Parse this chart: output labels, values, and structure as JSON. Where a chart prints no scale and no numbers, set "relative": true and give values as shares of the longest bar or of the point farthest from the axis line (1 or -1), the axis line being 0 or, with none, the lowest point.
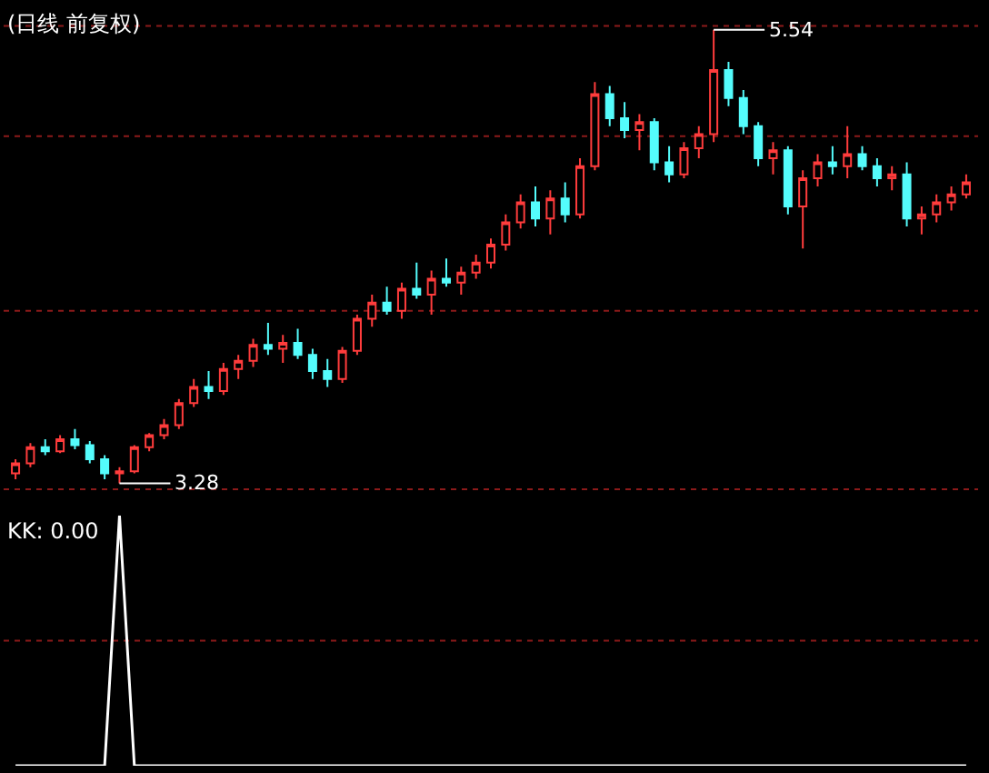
{
  "chart_data": [
    {
      "type": "candlestick",
      "title": "(日线 前复权)",
      "categories": [
        null,
        null,
        null,
        null,
        null,
        null,
        null,
        null,
        null,
        null,
        null,
        null,
        null,
        null,
        null,
        null,
        null,
        null,
        null,
        null,
        null,
        null,
        null,
        null,
        null,
        null,
        null,
        null,
        null,
        null,
        null,
        null,
        null,
        null,
        null,
        null,
        null,
        null,
        null,
        null,
        null,
        null,
        null,
        null,
        null,
        null,
        null,
        null,
        null,
        null,
        null,
        null,
        null,
        null,
        null,
        null,
        null,
        null,
        null,
        null,
        null,
        null,
        null,
        null,
        null
      ],
      "ohlc": [
        [
          3.33,
          3.4,
          3.3,
          3.38
        ],
        [
          3.38,
          3.48,
          3.36,
          3.46
        ],
        [
          3.46,
          3.5,
          3.42,
          3.44
        ],
        [
          3.44,
          3.52,
          3.43,
          3.5
        ],
        [
          3.5,
          3.55,
          3.45,
          3.47
        ],
        [
          3.47,
          3.49,
          3.38,
          3.4
        ],
        [
          3.4,
          3.42,
          3.3,
          3.33
        ],
        [
          3.33,
          3.36,
          3.28,
          3.34
        ],
        [
          3.34,
          3.47,
          3.33,
          3.46
        ],
        [
          3.46,
          3.53,
          3.44,
          3.52
        ],
        [
          3.52,
          3.6,
          3.5,
          3.57
        ],
        [
          3.57,
          3.7,
          3.55,
          3.68
        ],
        [
          3.68,
          3.8,
          3.66,
          3.76
        ],
        [
          3.76,
          3.84,
          3.7,
          3.74
        ],
        [
          3.74,
          3.88,
          3.72,
          3.85
        ],
        [
          3.85,
          3.92,
          3.8,
          3.89
        ],
        [
          3.89,
          4.0,
          3.86,
          3.97
        ],
        [
          3.97,
          4.08,
          3.92,
          3.95
        ],
        [
          3.95,
          4.02,
          3.88,
          3.98
        ],
        [
          3.98,
          4.05,
          3.9,
          3.92
        ],
        [
          3.92,
          3.95,
          3.8,
          3.84
        ],
        [
          3.84,
          3.9,
          3.76,
          3.8
        ],
        [
          3.8,
          3.96,
          3.78,
          3.94
        ],
        [
          3.94,
          4.12,
          3.92,
          4.1
        ],
        [
          4.1,
          4.22,
          4.06,
          4.18
        ],
        [
          4.18,
          4.26,
          4.12,
          4.14
        ],
        [
          4.14,
          4.28,
          4.1,
          4.25
        ],
        [
          4.25,
          4.38,
          4.2,
          4.22
        ],
        [
          4.22,
          4.34,
          4.12,
          4.3
        ],
        [
          4.3,
          4.4,
          4.26,
          4.28
        ],
        [
          4.28,
          4.36,
          4.22,
          4.33
        ],
        [
          4.33,
          4.42,
          4.3,
          4.38
        ],
        [
          4.38,
          4.5,
          4.35,
          4.47
        ],
        [
          4.47,
          4.62,
          4.44,
          4.58
        ],
        [
          4.58,
          4.72,
          4.55,
          4.68
        ],
        [
          4.68,
          4.76,
          4.56,
          4.6
        ],
        [
          4.6,
          4.74,
          4.52,
          4.7
        ],
        [
          4.7,
          4.78,
          4.58,
          4.62
        ],
        [
          4.62,
          4.9,
          4.6,
          4.86
        ],
        [
          4.86,
          5.28,
          4.84,
          5.22
        ],
        [
          5.22,
          5.26,
          5.06,
          5.1
        ],
        [
          5.1,
          5.18,
          5.0,
          5.04
        ],
        [
          5.04,
          5.12,
          4.94,
          5.08
        ],
        [
          5.08,
          5.1,
          4.84,
          4.88
        ],
        [
          4.88,
          4.96,
          4.78,
          4.82
        ],
        [
          4.82,
          4.98,
          4.8,
          4.95
        ],
        [
          4.95,
          5.06,
          4.9,
          5.02
        ],
        [
          5.02,
          5.54,
          4.98,
          5.34
        ],
        [
          5.34,
          5.38,
          5.16,
          5.2
        ],
        [
          5.2,
          5.24,
          5.02,
          5.06
        ],
        [
          5.06,
          5.08,
          4.86,
          4.9
        ],
        [
          4.9,
          4.98,
          4.82,
          4.94
        ],
        [
          4.94,
          4.96,
          4.62,
          4.66
        ],
        [
          4.66,
          4.84,
          4.45,
          4.8
        ],
        [
          4.8,
          4.92,
          4.76,
          4.88
        ],
        [
          4.88,
          4.96,
          4.82,
          4.86
        ],
        [
          4.86,
          5.06,
          4.8,
          4.92
        ],
        [
          4.92,
          4.96,
          4.84,
          4.86
        ],
        [
          4.86,
          4.9,
          4.76,
          4.8
        ],
        [
          4.8,
          4.86,
          4.74,
          4.82
        ],
        [
          4.82,
          4.88,
          4.56,
          4.6
        ],
        [
          4.6,
          4.66,
          4.52,
          4.62
        ],
        [
          4.62,
          4.72,
          4.58,
          4.68
        ],
        [
          4.68,
          4.76,
          4.64,
          4.72
        ],
        [
          4.72,
          4.82,
          4.7,
          4.78
        ]
      ],
      "colors": [
        "#ff3c3c",
        "#ff3c3c",
        "#54fcfc",
        "#ff3c3c",
        "#54fcfc",
        "#54fcfc",
        "#54fcfc",
        "#ff3c3c",
        "#ff3c3c",
        "#ff3c3c",
        "#ff3c3c",
        "#ff3c3c",
        "#ff3c3c",
        "#54fcfc",
        "#ff3c3c",
        "#ff3c3c",
        "#ff3c3c",
        "#54fcfc",
        "#ff3c3c",
        "#54fcfc",
        "#54fcfc",
        "#54fcfc",
        "#ff3c3c",
        "#ff3c3c",
        "#ff3c3c",
        "#54fcfc",
        "#ff3c3c",
        "#54fcfc",
        "#ff3c3c",
        "#54fcfc",
        "#ff3c3c",
        "#ff3c3c",
        "#ff3c3c",
        "#ff3c3c",
        "#ff3c3c",
        "#54fcfc",
        "#ff3c3c",
        "#54fcfc",
        "#ff3c3c",
        "#ff3c3c",
        "#54fcfc",
        "#54fcfc",
        "#ff3c3c",
        "#54fcfc",
        "#54fcfc",
        "#ff3c3c",
        "#ff3c3c",
        "#ff3c3c",
        "#54fcfc",
        "#54fcfc",
        "#54fcfc",
        "#ff3c3c",
        "#54fcfc",
        "#ff3c3c",
        "#ff3c3c",
        "#54fcfc",
        "#ff3c3c",
        "#54fcfc",
        "#54fcfc",
        "#ff3c3c",
        "#54fcfc",
        "#ff3c3c",
        "#ff3c3c",
        "#ff3c3c",
        "#ff3c3c"
      ],
      "annotations": [
        {
          "text": "3.28",
          "y": 3.28
        },
        {
          "text": "5.54",
          "y": 5.54
        }
      ],
      "ref_lines": [
        {
          "axis": "y",
          "value": 5.56,
          "color": "#8b1a1a",
          "line_style": "dotted"
        },
        {
          "axis": "y",
          "value": 5.01,
          "color": "#8b1a1a",
          "line_style": "dotted"
        },
        {
          "axis": "y",
          "value": 4.14,
          "color": "#8b1a1a",
          "line_style": "dotted"
        },
        {
          "axis": "y",
          "value": 3.25,
          "color": "#8b1a1a",
          "line_style": "dotted"
        }
      ]
    },
    {
      "type": "line",
      "title": "KK: 0.00",
      "relative": true,
      "categories": [
        null,
        null,
        null,
        null,
        null,
        null,
        null,
        null,
        null,
        null,
        null,
        null,
        null,
        null,
        null,
        null,
        null,
        null,
        null,
        null,
        null,
        null,
        null,
        null,
        null,
        null,
        null,
        null,
        null,
        null,
        null,
        null,
        null,
        null,
        null,
        null,
        null,
        null,
        null,
        null,
        null,
        null,
        null,
        null,
        null,
        null,
        null,
        null,
        null,
        null,
        null,
        null,
        null,
        null,
        null,
        null,
        null,
        null,
        null,
        null,
        null,
        null,
        null,
        null,
        null
      ],
      "series": [
        {
          "color": "#ffffff",
          "values": [
            0,
            0,
            0,
            0,
            0,
            0,
            0,
            1,
            0,
            0,
            0,
            0,
            0,
            0,
            0,
            0,
            0,
            0,
            0,
            0,
            0,
            0,
            0,
            0,
            0,
            0,
            0,
            0,
            0,
            0,
            0,
            0,
            0,
            0,
            0,
            0,
            0,
            0,
            0,
            0,
            0,
            0,
            0,
            0,
            0,
            0,
            0,
            0,
            0,
            0,
            0,
            0,
            0,
            0,
            0,
            0,
            0,
            0,
            0,
            0,
            0,
            0,
            0,
            0,
            0
          ]
        }
      ],
      "ref_lines": [
        {
          "axis": "y",
          "value": 0.5,
          "color": "#8b1a1a",
          "line_style": "dotted"
        }
      ]
    }
  ]
}
